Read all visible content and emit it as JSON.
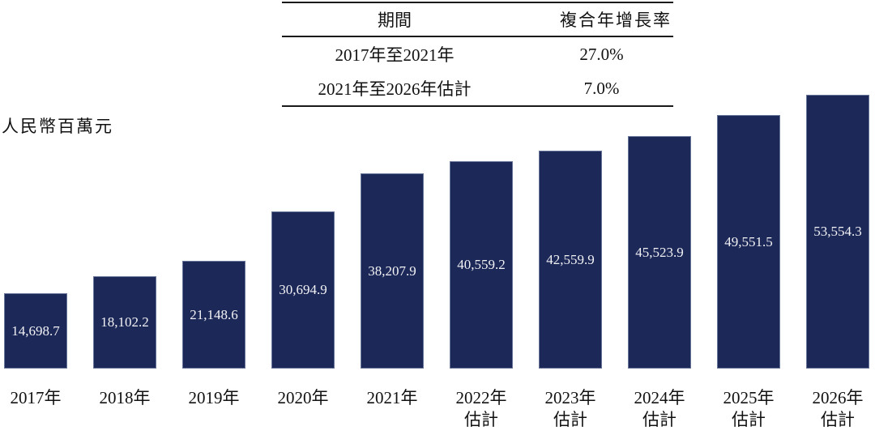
{
  "cagr_table": {
    "headers": [
      "期間",
      "複合年增長率"
    ],
    "rows": [
      {
        "period": "2017年至2021年",
        "rate": "27.0%"
      },
      {
        "period": "2021年至2026年估計",
        "rate": "7.0%"
      }
    ]
  },
  "chart_data": {
    "type": "bar",
    "title": "",
    "xlabel": "",
    "ylabel": "人民幣百萬元",
    "unit_label": "人民幣百萬元",
    "categories": [
      "2017年",
      "2018年",
      "2019年",
      "2020年",
      "2021年",
      "2022年估計",
      "2023年估計",
      "2024年估計",
      "2025年估計",
      "2026年估計"
    ],
    "tick_lines": [
      [
        "2017年",
        ""
      ],
      [
        "2018年",
        ""
      ],
      [
        "2019年",
        ""
      ],
      [
        "2020年",
        ""
      ],
      [
        "2021年",
        ""
      ],
      [
        "2022年",
        "估計"
      ],
      [
        "2023年",
        "估計"
      ],
      [
        "2024年",
        "估計"
      ],
      [
        "2025年",
        "估計"
      ],
      [
        "2026年",
        "估計"
      ]
    ],
    "values": [
      14698.7,
      18102.2,
      21148.6,
      30694.9,
      38207.9,
      40559.2,
      42559.9,
      45523.9,
      49551.5,
      53554.3
    ],
    "value_labels": [
      "14,698.7",
      "18,102.2",
      "21,148.6",
      "30,694.9",
      "38,207.9",
      "40,559.2",
      "42,559.9",
      "45,523.9",
      "49,551.5",
      "53,554.3"
    ],
    "ylim": [
      0,
      53554.3
    ],
    "grid": "off",
    "legend": "none",
    "bar_color": "#1c2857",
    "value_label_color": "#f2f2f5",
    "annotations": {
      "cagr_2017_2021": "27.0%",
      "cagr_2021_2026e": "7.0%"
    }
  }
}
